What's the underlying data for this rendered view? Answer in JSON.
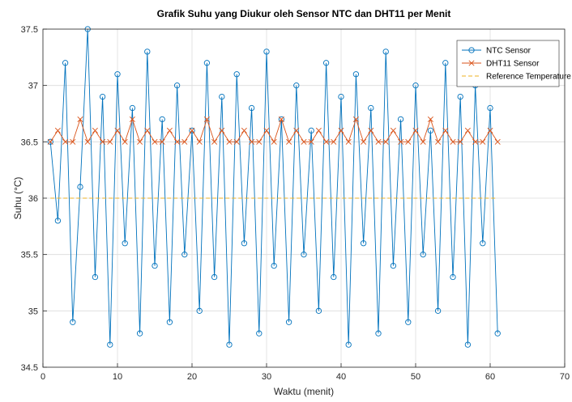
{
  "chart_data": {
    "type": "line",
    "title": "Grafik Suhu yang Diukur oleh Sensor NTC dan DHT11 per Menit",
    "xlabel": "Waktu (menit)",
    "ylabel": "Suhu (°C)",
    "xlim": [
      0,
      70
    ],
    "ylim": [
      34.5,
      37.5
    ],
    "xticks": [
      "0",
      "10",
      "20",
      "30",
      "40",
      "50",
      "60",
      "70"
    ],
    "yticks": [
      "34.5",
      "35",
      "35.5",
      "36",
      "36.5",
      "37",
      "37.5"
    ],
    "grid": true,
    "legend_position": "top-right",
    "x": [
      1,
      2,
      3,
      4,
      5,
      6,
      7,
      8,
      9,
      10,
      11,
      12,
      13,
      14,
      15,
      16,
      17,
      18,
      19,
      20,
      21,
      22,
      23,
      24,
      25,
      26,
      27,
      28,
      29,
      30,
      31,
      32,
      33,
      34,
      35,
      36,
      37,
      38,
      39,
      40,
      41,
      42,
      43,
      44,
      45,
      46,
      47,
      48,
      49,
      50,
      51,
      52,
      53,
      54,
      55,
      56,
      57,
      58,
      59,
      60,
      61
    ],
    "series": [
      {
        "name": "NTC Sensor",
        "color": "#0072BD",
        "marker": "circle",
        "values": [
          36.5,
          35.8,
          37.2,
          34.9,
          36.1,
          37.5,
          35.3,
          36.9,
          34.7,
          37.1,
          35.6,
          36.8,
          34.8,
          37.3,
          35.4,
          36.7,
          34.9,
          37.0,
          35.5,
          36.6,
          35.0,
          37.2,
          35.3,
          36.9,
          34.7,
          37.1,
          35.6,
          36.8,
          34.8,
          37.3,
          35.4,
          36.7,
          34.9,
          37.0,
          35.5,
          36.6,
          35.0,
          37.2,
          35.3,
          36.9,
          34.7,
          37.1,
          35.6,
          36.8,
          34.8,
          37.3,
          35.4,
          36.7,
          34.9,
          37.0,
          35.5,
          36.6,
          35.0,
          37.2,
          35.3,
          36.9,
          34.7,
          37.0,
          35.6,
          36.8,
          34.8
        ]
      },
      {
        "name": "DHT11 Sensor",
        "color": "#D95319",
        "marker": "x",
        "values": [
          36.5,
          36.6,
          36.5,
          36.5,
          36.7,
          36.5,
          36.6,
          36.5,
          36.5,
          36.6,
          36.5,
          36.7,
          36.5,
          36.6,
          36.5,
          36.5,
          36.6,
          36.5,
          36.5,
          36.6,
          36.5,
          36.7,
          36.5,
          36.6,
          36.5,
          36.5,
          36.6,
          36.5,
          36.5,
          36.6,
          36.5,
          36.7,
          36.5,
          36.6,
          36.5,
          36.5,
          36.6,
          36.5,
          36.5,
          36.6,
          36.5,
          36.7,
          36.5,
          36.6,
          36.5,
          36.5,
          36.6,
          36.5,
          36.5,
          36.6,
          36.5,
          36.7,
          36.5,
          36.6,
          36.5,
          36.5,
          36.6,
          36.5,
          36.5,
          36.6,
          36.5
        ]
      },
      {
        "name": "Reference Temperature",
        "color": "#EDB120",
        "marker": "none",
        "style": "dashed",
        "x": [
          1,
          61
        ],
        "values": [
          36.0,
          36.0
        ]
      }
    ]
  }
}
